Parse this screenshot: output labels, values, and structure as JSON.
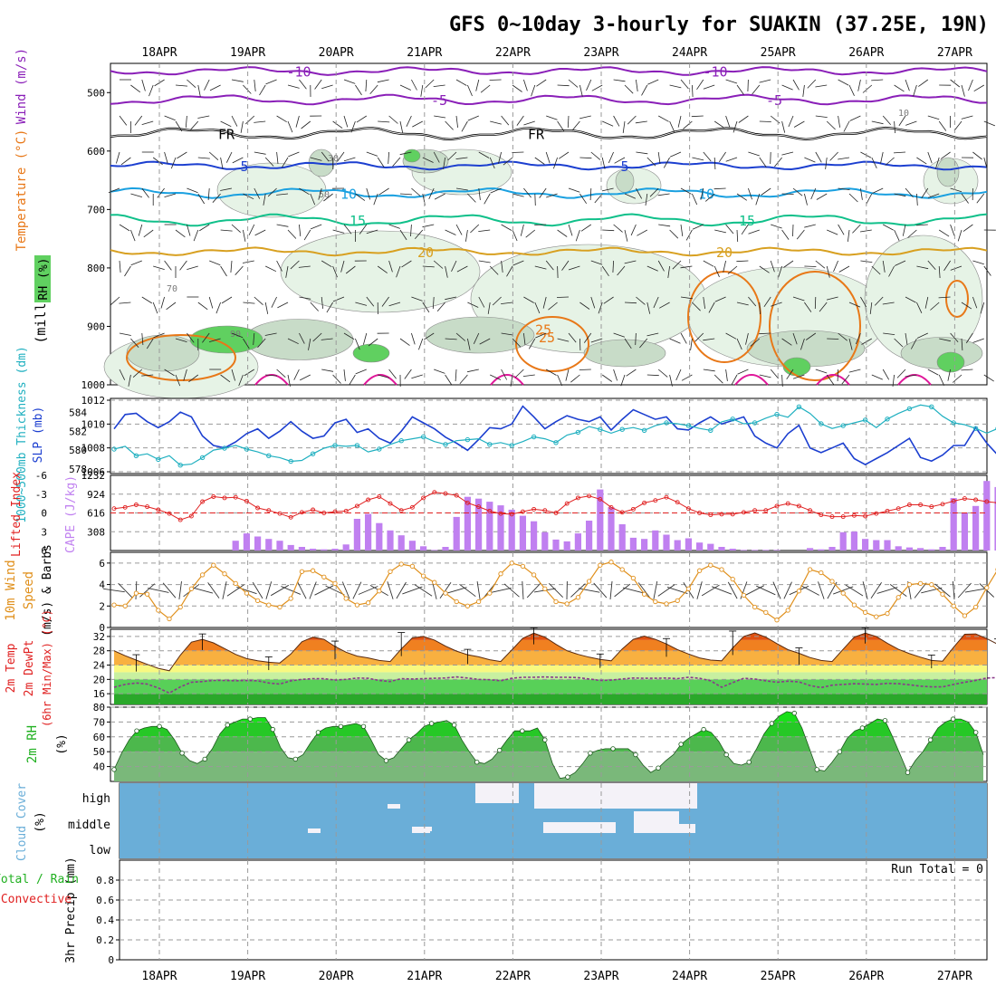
{
  "title": "GFS 0~10day 3-hourly for SUAKIN (37.25E, 19N)",
  "dates": [
    "18APR",
    "19APR",
    "20APR",
    "21APR",
    "22APR",
    "23APR",
    "24APR",
    "25APR",
    "26APR",
    "27APR"
  ],
  "colors": {
    "purple": "#8a1fb8",
    "black": "#000000",
    "blue": "#1c3fd0",
    "lightblue": "#1aa0e0",
    "teal": "#10c08a",
    "gold": "#d8a020",
    "orange": "#e87818",
    "magenta": "#e0189a",
    "rhfill1": "#e6f3e6",
    "rhfill2": "#c8dcc8",
    "rhfill3": "#60d060",
    "slp": "#1c3fd0",
    "thick": "#20b0c0",
    "cape": "#c080f0",
    "li": "#e02020",
    "wind10": "#e0901c",
    "cloud": "#6aaed8"
  },
  "panel_labels": {
    "p1_wind": "Wind (m/s)",
    "p1_temp": "Temperature (°C)",
    "p1_rh": "RH (%)",
    "p1_mb": "(millibars)",
    "p2_slp": "SLP (mb)",
    "p2_thick": "1000~500mb Thickness (dm)",
    "p3_li": "Lifted Index",
    "p3_cape": "CAPE (J/kg)",
    "p4_wind": "10m Wind",
    "p4_speed": "Speed",
    "p4_unit": "(m/s) & Barbs",
    "p5_temp": "2m Temp",
    "p5_dew": "2m DewPt",
    "p5_minmax": "(6hr Min/Max) (°C)",
    "p6_rh": "2m RH",
    "p6_unit": "(%)",
    "p7_cloud": "Cloud Cover",
    "p7_unit": "(%)",
    "p8_precip": "3hr Precip (mm)",
    "p8_total": "Total / Rain",
    "p8_conv": "Convective",
    "run_total": "Run Total = 0"
  },
  "chart_data": [
    {
      "type": "contour",
      "panel": "upper-air cross-section",
      "yaxis": {
        "label": "millibars",
        "ticks": [
          500,
          600,
          700,
          800,
          900,
          1000
        ],
        "range": [
          450,
          1000
        ],
        "inverted": true
      },
      "xaxis": {
        "ticks": [
          "18APR",
          "19APR",
          "20APR",
          "21APR",
          "22APR",
          "23APR",
          "24APR",
          "25APR",
          "26APR",
          "27APR"
        ]
      },
      "isotherms": [
        {
          "label": "-10",
          "pressure": 463,
          "color": "purple"
        },
        {
          "label": "-5",
          "pressure": 512,
          "color": "purple"
        },
        {
          "label": "FR",
          "pressure": 570,
          "color": "black"
        },
        {
          "label": "5",
          "pressure": 625,
          "color": "blue"
        },
        {
          "label": "10",
          "pressure": 672,
          "color": "lightblue"
        },
        {
          "label": "15",
          "pressure": 718,
          "color": "teal"
        },
        {
          "label": "20",
          "pressure": 772,
          "color": "gold"
        },
        {
          "label": "25",
          "pressure": 905,
          "color": "orange"
        }
      ],
      "rh_labels": [
        "30",
        "50",
        "70",
        "90",
        "10"
      ]
    },
    {
      "type": "line",
      "panel": "SLP & thickness",
      "series": [
        {
          "name": "SLP (mb)",
          "axis": "right",
          "range": [
            1006,
            1012
          ],
          "ticks": [
            1006,
            1008,
            1010,
            1012
          ],
          "values": [
            1009.6,
            1010.8,
            1010.9,
            1010.2,
            1009.7,
            1010.2,
            1011.0,
            1010.6,
            1009.0,
            1008.2,
            1008.0,
            1008.5,
            1009.2,
            1009.6,
            1008.8,
            1009.4,
            1010.2,
            1009.4,
            1008.8,
            1009.0,
            1010.1,
            1010.4,
            1009.3,
            1009.6,
            1008.8,
            1008.4,
            1009.4,
            1010.6,
            1010.1,
            1009.6,
            1008.9,
            1008.4,
            1007.8,
            1008.7,
            1009.7,
            1009.6,
            1010.0,
            1011.5,
            1010.6,
            1009.6,
            1010.2,
            1010.7,
            1010.4,
            1010.2,
            1010.6,
            1009.5,
            1010.4,
            1011.2,
            1010.8,
            1010.4,
            1010.6,
            1009.6,
            1009.5,
            1010.1,
            1010.6,
            1010.0,
            1010.3,
            1010.6,
            1009.0,
            1008.4,
            1008.0,
            1009.2,
            1009.9,
            1008.0,
            1007.6,
            1008.0,
            1008.4,
            1007.1,
            1006.6,
            1007.1,
            1007.6,
            1008.2,
            1008.8,
            1007.2,
            1006.9,
            1007.4,
            1008.2,
            1008.2,
            1009.7,
            1008.4,
            1007.4,
            1006.8,
            1008.4,
            1009.8,
            1008.2,
            1007.0,
            1007.8,
            1009.0,
            1009.6,
            1008.2,
            1007.5,
            1007.6,
            1008.3,
            1009.0,
            1007.6,
            1007.8,
            1008.6,
            1008.0,
            1008.7,
            1010.2
          ]
        },
        {
          "name": "1000~500mb Thickness (dm)",
          "axis": "left",
          "range": [
            577.5,
            585.5
          ],
          "ticks": [
            578,
            580,
            582,
            584
          ],
          "values": [
            580.1,
            580.4,
            579.4,
            579.6,
            579.0,
            579.4,
            578.4,
            578.5,
            579.2,
            580.0,
            580.2,
            580.5,
            580.1,
            579.8,
            579.4,
            579.2,
            578.8,
            578.9,
            579.6,
            580.2,
            580.5,
            580.4,
            580.5,
            579.8,
            580.1,
            580.6,
            581.0,
            581.2,
            581.4,
            580.9,
            580.6,
            581.0,
            581.1,
            581.2,
            580.6,
            580.8,
            580.5,
            580.9,
            581.4,
            581.2,
            580.8,
            581.6,
            581.9,
            582.5,
            582.2,
            581.8,
            582.2,
            582.4,
            582.1,
            582.6,
            582.9,
            582.8,
            582.6,
            582.3,
            582.1,
            583.0,
            583.3,
            582.8,
            582.9,
            583.4,
            583.8,
            583.5,
            584.6,
            583.9,
            582.8,
            582.3,
            582.6,
            582.9,
            583.2,
            582.4,
            583.3,
            583.9,
            584.4,
            584.8,
            584.6,
            583.6,
            582.9,
            582.7,
            582.3,
            581.8,
            582.3,
            582.4,
            582.5,
            582.2,
            582.0,
            581.4,
            580.8,
            580.4,
            580.3,
            580.6,
            581.2,
            581.3,
            580.6,
            580.2,
            580.6,
            581.0,
            581.2,
            580.8,
            580.4,
            580.6
          ]
        }
      ]
    },
    {
      "type": "bar",
      "panel": "CAPE & Lifted Index",
      "cape": {
        "unit": "J/kg",
        "range": [
          0,
          1232
        ],
        "ticks": [
          308,
          616,
          924,
          1232
        ],
        "values": [
          0,
          0,
          0,
          0,
          0,
          0,
          0,
          0,
          0,
          0,
          0,
          160,
          280,
          230,
          190,
          160,
          90,
          60,
          30,
          20,
          30,
          100,
          520,
          600,
          450,
          330,
          250,
          160,
          70,
          10,
          60,
          550,
          880,
          850,
          800,
          740,
          670,
          570,
          480,
          300,
          180,
          150,
          280,
          490,
          1000,
          710,
          430,
          210,
          190,
          330,
          260,
          170,
          200,
          130,
          110,
          60,
          30,
          10,
          10,
          10,
          10,
          0,
          0,
          40,
          20,
          60,
          300,
          310,
          190,
          170,
          170,
          70,
          50,
          40,
          20,
          60,
          860,
          620,
          730,
          1140,
          1040,
          930,
          810,
          940,
          710,
          550,
          530,
          540,
          520,
          490,
          470,
          320,
          110,
          20,
          40,
          0,
          90,
          480,
          890,
          910,
          750,
          190
        ]
      },
      "lifted_index": {
        "unit": "",
        "range": [
          6,
          -6
        ],
        "ticks": [
          6,
          3,
          0,
          -3,
          -6
        ],
        "dashed_zero": true,
        "values": [
          -0.7,
          -0.9,
          -1.3,
          -1.0,
          -0.5,
          0.1,
          1.1,
          0.5,
          -1.8,
          -2.6,
          -2.4,
          -2.5,
          -1.9,
          -0.8,
          -0.4,
          0.1,
          0.7,
          -0.1,
          -0.5,
          0.0,
          -0.2,
          -0.3,
          -1.1,
          -2.1,
          -2.6,
          -1.5,
          -0.4,
          -0.9,
          -2.4,
          -3.3,
          -3.1,
          -2.8,
          -1.6,
          -1.0,
          -0.3,
          0.1,
          0.2,
          -0.2,
          -0.6,
          -0.4,
          0.0,
          -1.5,
          -2.4,
          -2.7,
          -2.2,
          -0.9,
          -0.1,
          -0.6,
          -1.6,
          -2.0,
          -2.5,
          -1.7,
          -0.7,
          0.0,
          0.3,
          0.2,
          0.2,
          -0.1,
          -0.4,
          -0.4,
          -1.1,
          -1.5,
          -1.1,
          -0.4,
          0.3,
          0.6,
          0.6,
          0.4,
          0.5,
          0.1,
          -0.3,
          -0.7,
          -1.3,
          -1.3,
          -1.0,
          -1.4,
          -1.9,
          -2.3,
          -2.1,
          -1.8,
          -1.6,
          -1.2,
          -1.4,
          -1.2,
          -1.1,
          -0.7,
          -0.1,
          0.1,
          0.1,
          -0.2,
          -0.6,
          -1.0,
          -2.0,
          -2.6,
          -2.9,
          -2.4,
          -1.8,
          -0.8,
          -0.2,
          0.4
        ]
      }
    },
    {
      "type": "line",
      "panel": "10m wind speed",
      "series": [
        {
          "name": "10m Wind Speed (m/s)",
          "range": [
            0,
            7
          ],
          "ticks": [
            0,
            2,
            4,
            6
          ],
          "values": [
            2.1,
            2.0,
            3.2,
            3.1,
            1.6,
            0.8,
            1.9,
            3.6,
            4.9,
            5.8,
            5.0,
            4.1,
            3.2,
            2.5,
            2.1,
            1.9,
            2.7,
            5.2,
            5.3,
            4.7,
            4.1,
            2.7,
            2.1,
            2.3,
            3.4,
            5.2,
            5.9,
            5.7,
            4.8,
            4.2,
            3.2,
            2.4,
            2.0,
            2.4,
            3.2,
            5.0,
            6.0,
            5.7,
            4.9,
            3.6,
            2.4,
            2.2,
            2.8,
            4.3,
            5.8,
            6.1,
            5.4,
            4.6,
            3.1,
            2.4,
            2.2,
            2.5,
            3.6,
            5.3,
            5.8,
            5.4,
            4.5,
            3.0,
            1.9,
            1.4,
            0.7,
            1.6,
            3.4,
            5.4,
            5.1,
            4.3,
            3.2,
            2.1,
            1.4,
            1.0,
            1.3,
            2.8,
            4.0,
            4.1,
            4.0,
            3.1,
            2.0,
            1.1,
            1.9,
            3.7,
            5.4,
            5.3,
            4.2,
            2.9,
            1.6,
            0.3,
            1.4,
            4.3,
            6.2,
            5.8,
            3.9,
            2.3,
            1.3,
            0.9,
            1.7,
            4.0,
            5.6,
            5.1,
            3.7,
            2.7,
            2.7,
            2.5,
            1.9,
            3.0
          ]
        }
      ]
    },
    {
      "type": "area",
      "panel": "2m temperature & dewpoint",
      "range": [
        13,
        34
      ],
      "ticks": [
        16,
        20,
        24,
        28,
        32
      ],
      "series": [
        {
          "name": "2m Temp (°C)",
          "values": [
            28.0,
            26.6,
            25.4,
            24.2,
            23.1,
            22.4,
            26.8,
            30.4,
            31.2,
            30.2,
            28.6,
            27.0,
            25.8,
            25.2,
            24.8,
            24.6,
            27.1,
            30.5,
            31.8,
            31.2,
            29.2,
            27.6,
            26.5,
            26.0,
            25.3,
            25.0,
            28.5,
            31.6,
            32.0,
            31.0,
            29.3,
            27.9,
            26.9,
            26.3,
            25.5,
            25.0,
            28.2,
            31.5,
            32.9,
            31.8,
            29.8,
            28.0,
            27.0,
            26.2,
            25.6,
            25.2,
            28.5,
            31.2,
            32.1,
            31.2,
            29.9,
            28.3,
            27.1,
            26.0,
            25.4,
            25.2,
            28.8,
            32.0,
            33.0,
            31.8,
            30.0,
            28.3,
            27.3,
            26.1,
            25.3,
            25.0,
            28.4,
            31.8,
            32.9,
            32.0,
            30.1,
            28.4,
            27.2,
            26.2,
            25.3,
            25.1,
            29.0,
            32.6,
            32.7,
            31.4,
            29.8,
            28.3,
            27.1,
            26.4,
            25.6,
            25.1,
            28.5,
            32.0,
            33.0,
            32.1,
            30.3,
            28.6,
            27.3,
            26.4,
            25.5,
            24.8,
            24.0,
            23.4,
            22.8,
            28.0
          ]
        },
        {
          "name": "2m DewPt (°C)",
          "values": [
            17.8,
            18.6,
            19.0,
            18.7,
            17.6,
            16.2,
            17.9,
            19.2,
            19.4,
            19.7,
            19.7,
            19.6,
            19.7,
            19.6,
            19.0,
            18.7,
            19.6,
            20.0,
            20.2,
            20.2,
            19.8,
            20.0,
            20.4,
            20.3,
            19.7,
            19.4,
            20.2,
            20.1,
            20.2,
            20.3,
            20.4,
            20.7,
            20.4,
            20.0,
            19.9,
            19.6,
            20.3,
            20.6,
            20.6,
            20.7,
            20.6,
            20.6,
            20.5,
            20.1,
            19.7,
            19.8,
            20.1,
            20.4,
            20.3,
            20.3,
            20.4,
            20.2,
            20.6,
            20.3,
            19.6,
            17.8,
            19.1,
            20.3,
            20.1,
            19.6,
            19.2,
            19.5,
            19.3,
            18.3,
            17.7,
            18.4,
            18.6,
            18.8,
            18.7,
            18.6,
            18.9,
            18.8,
            18.5,
            18.1,
            17.9,
            17.9,
            18.6,
            19.2,
            19.7,
            20.4,
            20.5,
            20.4,
            20.6,
            20.2,
            19.8,
            19.9,
            20.3,
            20.5,
            20.6,
            20.6,
            20.5,
            20.8,
            20.3,
            19.8,
            19.5,
            19.7,
            20.4,
            20.5,
            20.5,
            18.7
          ]
        }
      ]
    },
    {
      "type": "area",
      "panel": "2m relative humidity",
      "range": [
        30,
        80
      ],
      "ticks": [
        40,
        50,
        60,
        70,
        80
      ],
      "series": [
        {
          "name": "2m RH (%)",
          "values": [
            38,
            49,
            58,
            64,
            66,
            67,
            67,
            65,
            58,
            49,
            44,
            42,
            45,
            52,
            62,
            68,
            70,
            72,
            72,
            73,
            73,
            65,
            53,
            46,
            45,
            48,
            56,
            63,
            66,
            67,
            67,
            68,
            69,
            67,
            58,
            48,
            44,
            46,
            52,
            58,
            62,
            67,
            69,
            70,
            71,
            68,
            58,
            50,
            43,
            42,
            45,
            51,
            58,
            64,
            64,
            64,
            66,
            58,
            42,
            32,
            33,
            36,
            42,
            49,
            51,
            52,
            52,
            52,
            52,
            48,
            41,
            36,
            39,
            44,
            48,
            55,
            59,
            62,
            65,
            63,
            57,
            48,
            42,
            41,
            43,
            52,
            62,
            69,
            74,
            77,
            76,
            66,
            52,
            38,
            37,
            43,
            50,
            59,
            64,
            66,
            69,
            72,
            71,
            60,
            48,
            36,
            44,
            50,
            58,
            66,
            70,
            72,
            72,
            70,
            63,
            48
          ]
        }
      ]
    },
    {
      "type": "heatmap",
      "panel": "cloud cover",
      "levels": [
        "high",
        "middle",
        "low"
      ]
    },
    {
      "type": "bar",
      "panel": "3hr precipitation",
      "unit": "mm",
      "range": [
        0,
        1
      ],
      "ticks": [
        0,
        0.2,
        0.4,
        0.6,
        0.8
      ],
      "values": []
    }
  ]
}
